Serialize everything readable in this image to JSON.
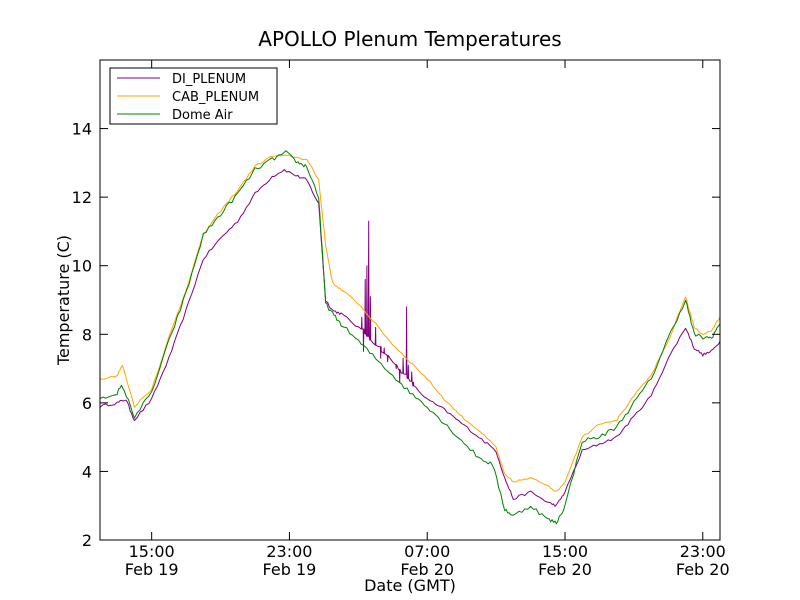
{
  "chart_data": {
    "type": "line",
    "title": "APOLLO Plenum Temperatures",
    "xlabel": "Date (GMT)",
    "ylabel": "Temperature (C)",
    "x_unit": "hours since Feb 19 12:00 GMT",
    "xlim": [
      0,
      36
    ],
    "ylim": [
      2,
      16
    ],
    "yticks": [
      2,
      4,
      6,
      8,
      10,
      12,
      14
    ],
    "xticks": [
      {
        "x": 3,
        "time": "15:00",
        "date": "Feb 19"
      },
      {
        "x": 11,
        "time": "23:00",
        "date": "Feb 19"
      },
      {
        "x": 19,
        "time": "07:00",
        "date": "Feb 20"
      },
      {
        "x": 27,
        "time": "15:00",
        "date": "Feb 20"
      },
      {
        "x": 35,
        "time": "23:00",
        "date": "Feb 20"
      }
    ],
    "legend_position": "top-left",
    "series": [
      {
        "name": "DI_PLENUM",
        "color": "#800080",
        "noise": 0.04,
        "points": [
          [
            0,
            5.9
          ],
          [
            1,
            6.0
          ],
          [
            1.5,
            6.1
          ],
          [
            2,
            5.5
          ],
          [
            3,
            6.1
          ],
          [
            4,
            7.3
          ],
          [
            5,
            8.7
          ],
          [
            6,
            10.2
          ],
          [
            7,
            10.8
          ],
          [
            8,
            11.3
          ],
          [
            9,
            12.1
          ],
          [
            10,
            12.6
          ],
          [
            10.7,
            12.8
          ],
          [
            11.5,
            12.6
          ],
          [
            12,
            12.5
          ],
          [
            12.7,
            11.8
          ],
          [
            13.1,
            9.0
          ],
          [
            13.5,
            8.7
          ],
          [
            14,
            8.6
          ],
          [
            15,
            8.2
          ],
          [
            16,
            7.7
          ],
          [
            17,
            7.2
          ],
          [
            18,
            6.6
          ],
          [
            19,
            6.1
          ],
          [
            20,
            5.8
          ],
          [
            21,
            5.4
          ],
          [
            22,
            5.0
          ],
          [
            23,
            4.6
          ],
          [
            23.5,
            3.8
          ],
          [
            24,
            3.2
          ],
          [
            25,
            3.4
          ],
          [
            26,
            3.1
          ],
          [
            26.5,
            3.0
          ],
          [
            27,
            3.4
          ],
          [
            28,
            4.6
          ],
          [
            29,
            4.8
          ],
          [
            30,
            5.0
          ],
          [
            31,
            5.6
          ],
          [
            32,
            6.2
          ],
          [
            33,
            7.3
          ],
          [
            34,
            8.2
          ],
          [
            34.5,
            7.6
          ],
          [
            35,
            7.4
          ],
          [
            35.5,
            7.5
          ],
          [
            36,
            7.8
          ]
        ],
        "spikes": [
          [
            15.2,
            8.5
          ],
          [
            15.3,
            7.5
          ],
          [
            15.4,
            9.6
          ],
          [
            15.5,
            10.0
          ],
          [
            15.6,
            11.3
          ],
          [
            15.7,
            9.1
          ],
          [
            16,
            8.2
          ],
          [
            16.3,
            7.3
          ],
          [
            16.5,
            7.6
          ],
          [
            16.7,
            7.2
          ],
          [
            17.2,
            7.0
          ],
          [
            17.4,
            6.6
          ],
          [
            17.6,
            7.3
          ],
          [
            17.8,
            8.8
          ],
          [
            17.9,
            7.1
          ],
          [
            18.1,
            6.9
          ],
          [
            18.2,
            6.6
          ]
        ]
      },
      {
        "name": "CAB_PLENUM",
        "color": "#ffa500",
        "noise": 0.03,
        "points": [
          [
            0,
            6.7
          ],
          [
            1,
            6.8
          ],
          [
            1.3,
            7.1
          ],
          [
            2,
            5.9
          ],
          [
            3,
            6.4
          ],
          [
            4,
            7.9
          ],
          [
            5,
            9.3
          ],
          [
            6,
            10.9
          ],
          [
            7,
            11.6
          ],
          [
            8,
            12.2
          ],
          [
            9,
            12.9
          ],
          [
            10,
            13.2
          ],
          [
            11,
            13.2
          ],
          [
            12,
            13.1
          ],
          [
            12.7,
            12.5
          ],
          [
            13.1,
            10.6
          ],
          [
            13.5,
            9.5
          ],
          [
            14,
            9.3
          ],
          [
            15,
            8.9
          ],
          [
            16,
            8.3
          ],
          [
            17,
            7.7
          ],
          [
            18,
            7.2
          ],
          [
            19,
            6.7
          ],
          [
            20,
            6.1
          ],
          [
            21,
            5.6
          ],
          [
            22,
            5.2
          ],
          [
            23,
            4.7
          ],
          [
            23.5,
            3.9
          ],
          [
            24,
            3.7
          ],
          [
            25,
            3.8
          ],
          [
            26,
            3.6
          ],
          [
            26.5,
            3.4
          ],
          [
            27,
            3.7
          ],
          [
            28,
            5.0
          ],
          [
            29,
            5.4
          ],
          [
            30,
            5.5
          ],
          [
            31,
            6.2
          ],
          [
            32,
            6.8
          ],
          [
            33,
            7.8
          ],
          [
            34,
            9.1
          ],
          [
            34.5,
            8.2
          ],
          [
            35,
            8.0
          ],
          [
            35.5,
            8.1
          ],
          [
            36,
            8.5
          ]
        ],
        "spikes": []
      },
      {
        "name": "Dome Air",
        "color": "#008000",
        "noise": 0.06,
        "points": [
          [
            0,
            6.1
          ],
          [
            1,
            6.3
          ],
          [
            1.3,
            6.5
          ],
          [
            2,
            5.6
          ],
          [
            3,
            6.3
          ],
          [
            4,
            7.8
          ],
          [
            5,
            9.2
          ],
          [
            6,
            10.9
          ],
          [
            7,
            11.5
          ],
          [
            8,
            12.1
          ],
          [
            9,
            12.8
          ],
          [
            10,
            13.1
          ],
          [
            10.8,
            13.3
          ],
          [
            11.5,
            13.0
          ],
          [
            12,
            12.9
          ],
          [
            12.7,
            12.0
          ],
          [
            13.1,
            8.9
          ],
          [
            13.5,
            8.6
          ],
          [
            14,
            8.3
          ],
          [
            15,
            7.8
          ],
          [
            16,
            7.3
          ],
          [
            17,
            6.8
          ],
          [
            18,
            6.3
          ],
          [
            19,
            5.9
          ],
          [
            20,
            5.4
          ],
          [
            21,
            4.9
          ],
          [
            22,
            4.4
          ],
          [
            22.8,
            4.2
          ],
          [
            23.5,
            2.9
          ],
          [
            24,
            2.7
          ],
          [
            25,
            3.0
          ],
          [
            26,
            2.6
          ],
          [
            26.5,
            2.5
          ],
          [
            27,
            3.0
          ],
          [
            28,
            4.9
          ],
          [
            29,
            5.0
          ],
          [
            30,
            5.3
          ],
          [
            31,
            6.0
          ],
          [
            32,
            6.7
          ],
          [
            33,
            7.9
          ],
          [
            34,
            9.0
          ],
          [
            34.5,
            8.0
          ],
          [
            35,
            7.9
          ],
          [
            35.5,
            7.9
          ],
          [
            36,
            8.3
          ]
        ],
        "spikes": []
      }
    ]
  }
}
